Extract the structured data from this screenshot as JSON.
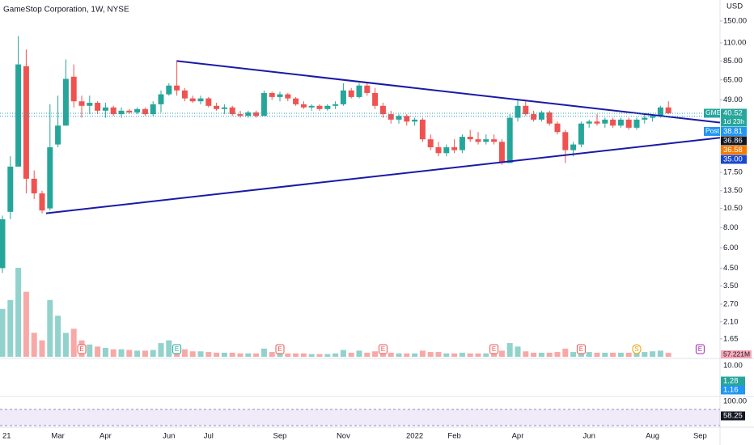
{
  "chart_data": {
    "type": "candlestick",
    "title": "GameStop Corporation, 1W, NYSE",
    "currency": "USD",
    "log_scale": true,
    "grid": false,
    "up_color": "#26a69a",
    "down_color": "#ef5350",
    "ylim": [
      1.25,
      202
    ],
    "yticks": [
      {
        "value": 150,
        "label": "150.00"
      },
      {
        "value": 110,
        "label": "110.00"
      },
      {
        "value": 85,
        "label": "85.00"
      },
      {
        "value": 65,
        "label": "65.00"
      },
      {
        "value": 49,
        "label": "49.00"
      },
      {
        "value": 17.5,
        "label": "17.50"
      },
      {
        "value": 13.5,
        "label": "13.50"
      },
      {
        "value": 10.5,
        "label": "10.50"
      },
      {
        "value": 8,
        "label": "8.00"
      },
      {
        "value": 6,
        "label": "6.00"
      },
      {
        "value": 4.5,
        "label": "4.50"
      },
      {
        "value": 3.5,
        "label": "3.50"
      },
      {
        "value": 2.7,
        "label": "2.70"
      },
      {
        "value": 2.1,
        "label": "2.10"
      },
      {
        "value": 1.65,
        "label": "1.65"
      }
    ],
    "categories": [
      "21",
      null,
      null,
      null,
      null,
      null,
      null,
      "Mar",
      null,
      null,
      null,
      null,
      null,
      "Apr",
      null,
      null,
      null,
      null,
      null,
      null,
      null,
      "Jun",
      null,
      null,
      null,
      null,
      "Jul",
      null,
      null,
      null,
      null,
      null,
      null,
      null,
      null,
      "Sep",
      null,
      null,
      null,
      null,
      null,
      null,
      null,
      "Nov",
      null,
      null,
      null,
      null,
      null,
      null,
      null,
      null,
      "2022",
      null,
      null,
      null,
      null,
      "Feb",
      null,
      null,
      null,
      null,
      null,
      null,
      null,
      "Apr",
      null,
      null,
      null,
      null,
      null,
      null,
      null,
      null,
      "Jun",
      null,
      null,
      null,
      null,
      null,
      null,
      null,
      "Aug",
      null,
      null,
      null,
      null,
      null,
      "Sep"
    ],
    "open": [
      4.5,
      10,
      19,
      79,
      16,
      13,
      10.5,
      26,
      34,
      68,
      48,
      45,
      47,
      42,
      44,
      40,
      42,
      41,
      43,
      40,
      46,
      53,
      60,
      56,
      50,
      48,
      50,
      45,
      43,
      44,
      40,
      39,
      41,
      39,
      54,
      51,
      53,
      50,
      46,
      44,
      45,
      43,
      45,
      46,
      56,
      51,
      60,
      54,
      45,
      40,
      37,
      39,
      36,
      37,
      28,
      25,
      23,
      25,
      24,
      29,
      28,
      27,
      28,
      27,
      20,
      38,
      45,
      40,
      37,
      41,
      35,
      31,
      24,
      26,
      35,
      36,
      35,
      37,
      34,
      37,
      33,
      37,
      38,
      39,
      44,
      null,
      null,
      null,
      null
    ],
    "high": [
      9.5,
      22,
      121,
      100,
      18,
      13.5,
      46,
      52,
      87,
      81,
      52,
      52,
      48,
      47,
      45,
      44,
      43,
      44,
      44,
      48,
      56,
      62,
      86,
      58,
      52,
      52,
      51,
      47,
      46,
      45,
      42,
      42,
      42,
      56,
      55,
      55,
      54,
      51,
      48,
      46,
      46,
      46,
      48,
      62,
      58,
      62,
      62,
      58,
      47,
      42,
      40,
      40,
      38,
      38,
      30,
      27,
      26,
      28,
      30,
      32,
      31,
      30,
      30,
      28,
      40,
      49,
      48,
      42,
      42,
      42,
      36,
      32,
      27,
      36,
      37,
      40,
      38,
      38,
      38,
      38,
      38,
      40,
      40,
      45,
      48,
      null,
      null,
      null,
      null
    ],
    "low": [
      4.2,
      9,
      19,
      13,
      12,
      9.8,
      10.2,
      25,
      34,
      44,
      38,
      40,
      40,
      38,
      39,
      38,
      40,
      40,
      39,
      39,
      41,
      52,
      52,
      48,
      47,
      46,
      44,
      42,
      40,
      39,
      38,
      38,
      38,
      39,
      49,
      48,
      48,
      45,
      43,
      42,
      42,
      42,
      43,
      45,
      50,
      50,
      52,
      43,
      38,
      35,
      35,
      34,
      34,
      27,
      24,
      22,
      22,
      23,
      23,
      27,
      26,
      26,
      26,
      19.5,
      20,
      36,
      39,
      36,
      36,
      34,
      30,
      20,
      22,
      25,
      33,
      34,
      33,
      33,
      33,
      32,
      32,
      35,
      36,
      38,
      40,
      null,
      null,
      null,
      null
    ],
    "close": [
      9,
      19,
      81,
      16,
      13,
      10.2,
      25,
      34,
      66,
      48,
      45,
      47,
      42,
      44,
      40,
      42,
      41,
      43,
      40,
      46,
      53,
      60,
      56,
      50,
      48,
      50,
      45,
      43,
      44,
      40,
      39,
      41,
      39,
      54,
      51,
      53,
      50,
      46,
      44,
      45,
      43,
      45,
      46,
      56,
      51,
      60,
      54,
      45,
      40,
      37,
      39,
      36,
      37,
      28,
      25,
      23,
      25,
      24,
      29,
      28,
      27,
      28,
      27,
      20,
      38,
      45,
      40,
      37,
      41,
      35,
      31,
      24,
      26,
      35,
      36,
      35,
      37,
      34,
      37,
      33,
      37,
      38,
      39,
      44,
      40.52,
      null,
      null,
      null,
      null
    ],
    "volume": [
      700,
      830,
      1300,
      950,
      350,
      240,
      830,
      600,
      350,
      410,
      240,
      180,
      150,
      130,
      110,
      110,
      100,
      90,
      90,
      100,
      200,
      240,
      180,
      110,
      80,
      80,
      70,
      60,
      60,
      60,
      50,
      50,
      50,
      120,
      70,
      60,
      50,
      50,
      50,
      40,
      40,
      40,
      50,
      100,
      60,
      90,
      60,
      80,
      60,
      60,
      50,
      50,
      50,
      90,
      70,
      70,
      50,
      50,
      60,
      50,
      50,
      50,
      50,
      90,
      200,
      150,
      80,
      60,
      60,
      60,
      70,
      120,
      70,
      90,
      70,
      60,
      60,
      60,
      60,
      60,
      60,
      70,
      80,
      90,
      57.221,
      null,
      null,
      null,
      null
    ],
    "volume_label": "57.221M",
    "trendlines": [
      {
        "x": [
          22,
          90.5
        ],
        "y": [
          85,
          35.5
        ],
        "color": "#1a1aa6"
      },
      {
        "x": [
          5.5,
          90.5
        ],
        "y": [
          9.8,
          28.6
        ],
        "color": "#1a1aa6"
      }
    ],
    "events": [
      {
        "label": "E",
        "index": 10,
        "color": "#ef5350"
      },
      {
        "label": "E",
        "index": 22,
        "color": "#26a69a"
      },
      {
        "label": "E",
        "index": 35,
        "color": "#ef5350"
      },
      {
        "label": "E",
        "index": 48,
        "color": "#ef5350"
      },
      {
        "label": "E",
        "index": 62,
        "color": "#ef5350"
      },
      {
        "label": "E",
        "index": 73,
        "color": "#ef5350"
      },
      {
        "label": "S",
        "index": 80,
        "color": "#f59f00"
      },
      {
        "label": "E",
        "index": 88,
        "color": "#9c27b0"
      }
    ],
    "price_tags": [
      {
        "name": "GME",
        "value": 40.52,
        "sub": "1d 23h",
        "color": "#26a69a"
      },
      {
        "name": "Post",
        "value": 38.81,
        "color": "#2196f3"
      },
      {
        "value": 36.86,
        "color": "#131722"
      },
      {
        "value": 36.58,
        "color": "#f57c00"
      },
      {
        "value": 35.0,
        "label": "35.00",
        "color": "#1848cc"
      }
    ],
    "macd_labels": [
      {
        "value": 10,
        "label": "10.00"
      },
      {
        "value": 1.28,
        "color": "#26a69a"
      },
      {
        "value": 1.16,
        "color": "#2196f3"
      }
    ],
    "rsi_labels": [
      {
        "value": 100,
        "label": "100.00"
      },
      {
        "value": 58.25,
        "color": "#131722"
      }
    ]
  }
}
